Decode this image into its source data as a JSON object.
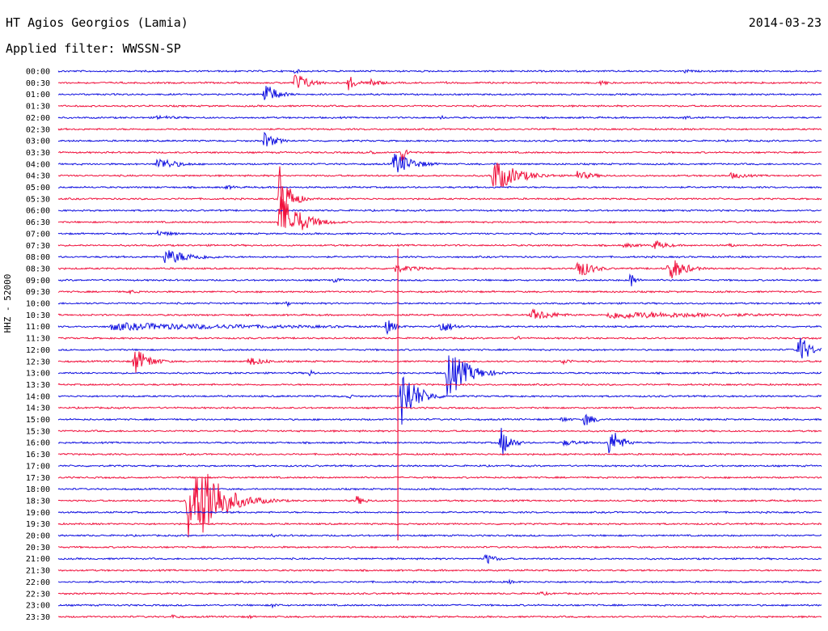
{
  "header": {
    "station": "HT Agios Georgios (Lamia)",
    "date": "2014-03-23",
    "filter_label": "Applied filter: WWSSN-SP"
  },
  "chart_data": {
    "type": "line",
    "title": "HT Agios Georgios (Lamia)",
    "subtitle": "Applied filter: WWSSN-SP",
    "date": "2014-03-23",
    "ylabel": "HHZ - 52000",
    "grid": false,
    "colors": {
      "even_row": "#1010e0",
      "odd_row": "#f0103c"
    },
    "rows": [
      {
        "time": "00:00",
        "events": [
          {
            "t": 0.31,
            "amp": 3,
            "dur": 0.02
          },
          {
            "t": 0.82,
            "amp": 3,
            "dur": 0.02
          }
        ]
      },
      {
        "time": "00:30",
        "events": [
          {
            "t": 0.31,
            "amp": 14,
            "dur": 0.03
          },
          {
            "t": 0.38,
            "amp": 10,
            "dur": 0.02
          },
          {
            "t": 0.41,
            "amp": 7,
            "dur": 0.02
          },
          {
            "t": 0.51,
            "amp": 3,
            "dur": 0.01
          },
          {
            "t": 0.71,
            "amp": 4,
            "dur": 0.02
          },
          {
            "t": 0.92,
            "amp": 3,
            "dur": 0.01
          }
        ]
      },
      {
        "time": "01:00",
        "events": [
          {
            "t": 0.27,
            "amp": 16,
            "dur": 0.025
          }
        ]
      },
      {
        "time": "01:30",
        "events": []
      },
      {
        "time": "02:00",
        "events": [
          {
            "t": 0.13,
            "amp": 3,
            "dur": 0.05
          },
          {
            "t": 0.5,
            "amp": 4,
            "dur": 0.01
          },
          {
            "t": 0.82,
            "amp": 3,
            "dur": 0.02
          }
        ]
      },
      {
        "time": "02:30",
        "events": []
      },
      {
        "time": "03:00",
        "events": [
          {
            "t": 0.27,
            "amp": 11,
            "dur": 0.025
          }
        ]
      },
      {
        "time": "03:30",
        "events": [
          {
            "t": 0.41,
            "amp": 5,
            "dur": 0.01
          },
          {
            "t": 0.45,
            "amp": 14,
            "dur": 0.01
          }
        ]
      },
      {
        "time": "04:00",
        "events": [
          {
            "t": 0.13,
            "amp": 9,
            "dur": 0.04
          },
          {
            "t": 0.44,
            "amp": 16,
            "dur": 0.04
          }
        ]
      },
      {
        "time": "04:30",
        "events": [
          {
            "t": 0.57,
            "amp": 22,
            "dur": 0.05
          },
          {
            "t": 0.68,
            "amp": 6,
            "dur": 0.04
          },
          {
            "t": 0.88,
            "amp": 4,
            "dur": 0.05
          }
        ]
      },
      {
        "time": "05:00",
        "events": [
          {
            "t": 0.22,
            "amp": 3,
            "dur": 0.03
          }
        ]
      },
      {
        "time": "05:30",
        "events": [
          {
            "t": 0.29,
            "amp": 45,
            "dur": 0.02
          }
        ]
      },
      {
        "time": "06:00",
        "events": []
      },
      {
        "time": "06:30",
        "events": [
          {
            "t": 0.29,
            "amp": 38,
            "dur": 0.04
          }
        ]
      },
      {
        "time": "07:00",
        "events": [
          {
            "t": 0.13,
            "amp": 4,
            "dur": 0.04
          }
        ]
      },
      {
        "time": "07:30",
        "events": [
          {
            "t": 0.74,
            "amp": 3,
            "dur": 0.05
          },
          {
            "t": 0.78,
            "amp": 7,
            "dur": 0.03
          },
          {
            "t": 0.88,
            "amp": 4,
            "dur": 0.01
          }
        ]
      },
      {
        "time": "08:00",
        "events": [
          {
            "t": 0.14,
            "amp": 10,
            "dur": 0.06
          }
        ]
      },
      {
        "time": "08:30",
        "events": [
          {
            "t": 0.44,
            "amp": 5,
            "dur": 0.06
          },
          {
            "t": 0.68,
            "amp": 14,
            "dur": 0.03
          },
          {
            "t": 0.8,
            "amp": 18,
            "dur": 0.03
          }
        ]
      },
      {
        "time": "09:00",
        "events": [
          {
            "t": 0.36,
            "amp": 3,
            "dur": 0.03
          },
          {
            "t": 0.75,
            "amp": 12,
            "dur": 0.01
          }
        ]
      },
      {
        "time": "09:30",
        "events": [
          {
            "t": 0.09,
            "amp": 3,
            "dur": 0.03
          }
        ]
      },
      {
        "time": "10:00",
        "events": [
          {
            "t": 0.3,
            "amp": 4,
            "dur": 0.01
          }
        ]
      },
      {
        "time": "10:30",
        "events": [
          {
            "t": 0.62,
            "amp": 8,
            "dur": 0.05
          },
          {
            "t": 0.72,
            "amp": 5,
            "dur": 0.28
          }
        ]
      },
      {
        "time": "11:00",
        "events": [
          {
            "t": 0.07,
            "amp": 5,
            "dur": 0.38
          },
          {
            "t": 0.43,
            "amp": 10,
            "dur": 0.02
          },
          {
            "t": 0.5,
            "amp": 9,
            "dur": 0.03
          }
        ]
      },
      {
        "time": "11:30",
        "events": [
          {
            "t": 0.6,
            "amp": 4,
            "dur": 0.01
          }
        ]
      },
      {
        "time": "12:00",
        "events": [
          {
            "t": 0.97,
            "amp": 24,
            "dur": 0.02
          }
        ]
      },
      {
        "time": "12:30",
        "events": [
          {
            "t": 0.1,
            "amp": 18,
            "dur": 0.03
          },
          {
            "t": 0.25,
            "amp": 6,
            "dur": 0.04
          },
          {
            "t": 0.66,
            "amp": 5,
            "dur": 0.02
          }
        ]
      },
      {
        "time": "13:00",
        "events": [
          {
            "t": 0.33,
            "amp": 5,
            "dur": 0.01
          },
          {
            "t": 0.51,
            "amp": 34,
            "dur": 0.04
          }
        ]
      },
      {
        "time": "13:30",
        "events": []
      },
      {
        "time": "14:00",
        "events": [
          {
            "t": 0.38,
            "amp": 4,
            "dur": 0.01
          },
          {
            "t": 0.45,
            "amp": 40,
            "dur": 0.03
          }
        ]
      },
      {
        "time": "14:30",
        "events": []
      },
      {
        "time": "15:00",
        "events": [
          {
            "t": 0.66,
            "amp": 4,
            "dur": 0.02
          },
          {
            "t": 0.69,
            "amp": 10,
            "dur": 0.02
          }
        ]
      },
      {
        "time": "15:30",
        "events": []
      },
      {
        "time": "16:00",
        "events": [
          {
            "t": 0.58,
            "amp": 20,
            "dur": 0.02
          },
          {
            "t": 0.66,
            "amp": 4,
            "dur": 0.05
          },
          {
            "t": 0.72,
            "amp": 18,
            "dur": 0.02
          },
          {
            "t": 0.73,
            "amp": 14,
            "dur": 0.02
          }
        ]
      },
      {
        "time": "16:30",
        "events": []
      },
      {
        "time": "17:00",
        "events": []
      },
      {
        "time": "17:30",
        "events": []
      },
      {
        "time": "18:00",
        "events": []
      },
      {
        "time": "18:30",
        "events": [
          {
            "t": 0.17,
            "amp": 52,
            "dur": 0.06
          },
          {
            "t": 0.19,
            "amp": 60,
            "dur": 0.04
          },
          {
            "t": 0.39,
            "amp": 7,
            "dur": 0.02
          }
        ]
      },
      {
        "time": "19:00",
        "events": []
      },
      {
        "time": "19:30",
        "events": []
      },
      {
        "time": "20:00",
        "events": [
          {
            "t": 0.28,
            "amp": 3,
            "dur": 0.01
          }
        ]
      },
      {
        "time": "20:30",
        "events": []
      },
      {
        "time": "21:00",
        "events": [
          {
            "t": 0.56,
            "amp": 8,
            "dur": 0.02
          }
        ]
      },
      {
        "time": "21:30",
        "events": []
      },
      {
        "time": "22:00",
        "events": [
          {
            "t": 0.59,
            "amp": 3,
            "dur": 0.02
          }
        ]
      },
      {
        "time": "22:30",
        "events": [
          {
            "t": 0.63,
            "amp": 3,
            "dur": 0.03
          }
        ]
      },
      {
        "time": "23:00",
        "events": [
          {
            "t": 0.28,
            "amp": 3,
            "dur": 0.02
          }
        ]
      },
      {
        "time": "23:30",
        "events": [
          {
            "t": 0.15,
            "amp": 3,
            "dur": 0.02
          },
          {
            "t": 0.25,
            "amp": 3,
            "dur": 0.01
          }
        ]
      }
    ],
    "vertical_spike": {
      "t": 0.445,
      "from_row": 15,
      "to_row": 40
    }
  }
}
